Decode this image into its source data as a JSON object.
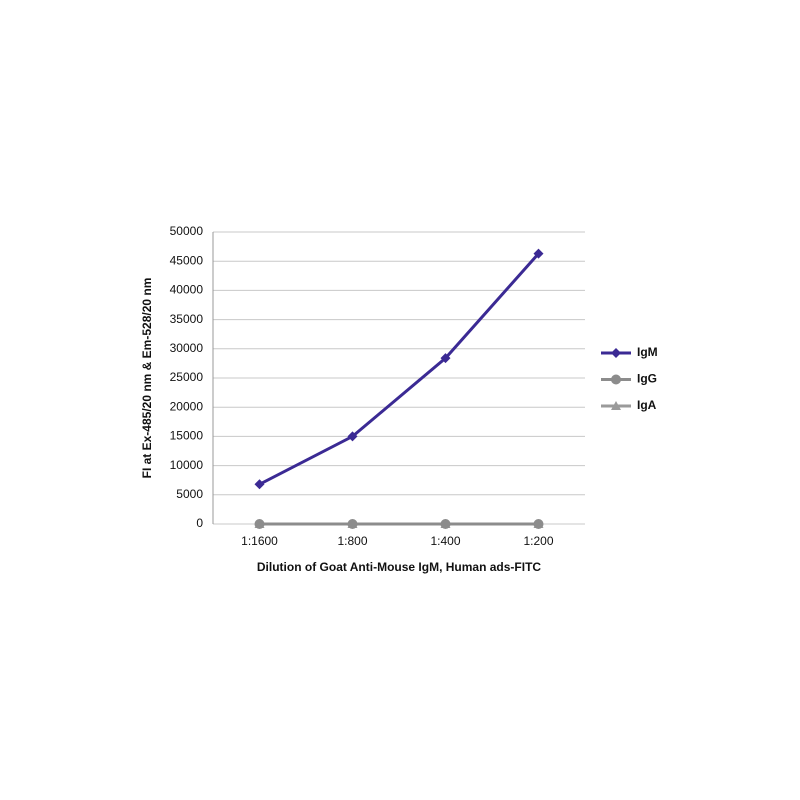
{
  "chart_data": {
    "type": "line",
    "x_label": "Dilution of Goat Anti-Mouse IgM, Human ads-FITC",
    "y_label": "FI at Ex-485/20 nm & Em-528/20 nm",
    "categories": [
      "1:1600",
      "1:800",
      "1:400",
      "1:200"
    ],
    "series": [
      {
        "name": "IgM",
        "color": "#3b2a94",
        "marker": "diamond",
        "values": [
          6800,
          15000,
          28400,
          46300
        ]
      },
      {
        "name": "IgG",
        "color": "#8c8c8c",
        "marker": "circle",
        "values": [
          0,
          0,
          0,
          0
        ]
      },
      {
        "name": "IgA",
        "color": "#9a9a9a",
        "marker": "triangle",
        "values": [
          0,
          0,
          0,
          0
        ]
      }
    ],
    "ylim": [
      0,
      50000
    ],
    "yticks": [
      0,
      5000,
      10000,
      15000,
      20000,
      25000,
      30000,
      35000,
      40000,
      45000,
      50000
    ],
    "grid": true,
    "legend": "right"
  }
}
